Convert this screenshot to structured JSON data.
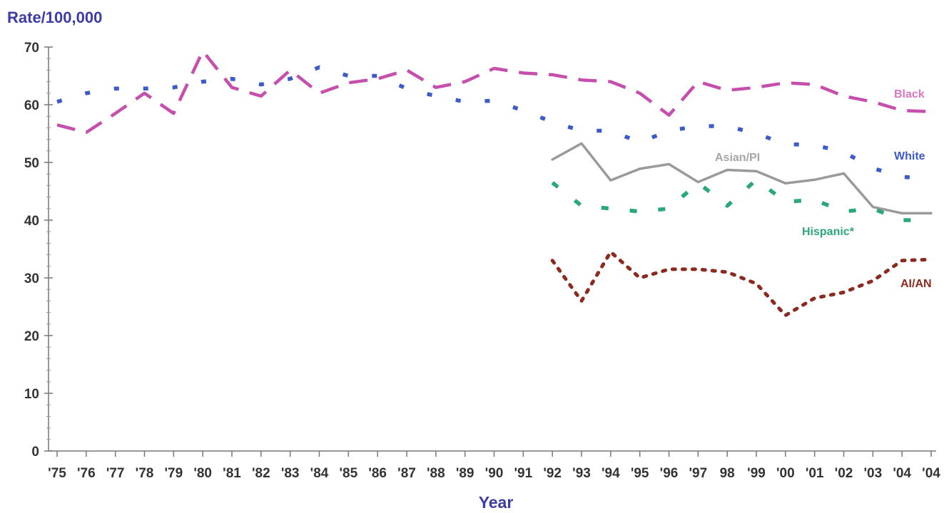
{
  "chart_data": {
    "type": "line",
    "ylabel": "Rate/100,000",
    "xlabel": "Year",
    "ylim": [
      0,
      70
    ],
    "y_ticks": [
      0,
      10,
      20,
      30,
      40,
      50,
      60,
      70
    ],
    "grid": false,
    "x": [
      "'75",
      "'76",
      "'77",
      "'78",
      "'79",
      "'80",
      "'81",
      "'82",
      "'83",
      "'84",
      "'85",
      "'86",
      "'87",
      "'88",
      "'89",
      "'90",
      "'91",
      "'92",
      "'93",
      "'94",
      "'95",
      "'96",
      "'97",
      "'98",
      "'99",
      "'00",
      "'01",
      "'02",
      "'03",
      "'04",
      "'04"
    ],
    "x_tick_labels": [
      "'75",
      "'76",
      "'77",
      "'78",
      "'79",
      "'80",
      "'81",
      "'82",
      "'83",
      "'84",
      "'85",
      "'86",
      "'87",
      "'88",
      "'89",
      "'90",
      "'91",
      "'92",
      "'93",
      "'94",
      "'95",
      "'96",
      "'97",
      "98",
      "'99",
      "'00",
      "'01",
      "'02",
      "'03",
      "'04",
      "'04"
    ],
    "series": [
      {
        "name": "Black",
        "color": "#c64fae",
        "style": "dashed",
        "values": [
          56.5,
          55.2,
          58.5,
          62.0,
          58.5,
          69.3,
          63.0,
          61.5,
          66.0,
          62.0,
          63.8,
          64.5,
          66.0,
          63.0,
          64.0,
          66.3,
          65.5,
          65.2,
          64.3,
          64.0,
          62.0,
          58.2,
          64.0,
          62.5,
          63.0,
          63.8,
          63.5,
          61.5,
          60.5,
          59.0,
          58.8
        ]
      },
      {
        "name": "White",
        "color": "#3c5ac8",
        "style": "dotted",
        "values": [
          60.5,
          62.0,
          62.8,
          62.8,
          63.0,
          64.0,
          64.5,
          63.5,
          64.5,
          66.5,
          65.0,
          65.0,
          62.8,
          61.5,
          60.5,
          60.7,
          59.0,
          57.0,
          55.5,
          55.5,
          53.5,
          55.5,
          56.3,
          56.3,
          55.0,
          53.2,
          53.0,
          51.8,
          49.0,
          47.5,
          47.2
        ]
      },
      {
        "name": "Asian/PI",
        "color": "#9a9a9a",
        "style": "solid",
        "values": [
          null,
          null,
          null,
          null,
          null,
          null,
          null,
          null,
          null,
          null,
          null,
          null,
          null,
          null,
          null,
          null,
          null,
          50.5,
          53.3,
          46.9,
          48.9,
          49.7,
          46.6,
          48.7,
          48.5,
          46.4,
          47.0,
          48.1,
          42.3,
          41.2,
          41.2
        ]
      },
      {
        "name": "Hispanic*",
        "color": "#2aa878",
        "style": "dash-dot",
        "values": [
          null,
          null,
          null,
          null,
          null,
          null,
          null,
          null,
          null,
          null,
          null,
          null,
          null,
          null,
          null,
          null,
          null,
          46.5,
          42.5,
          42.0,
          41.5,
          42.0,
          46.5,
          42.5,
          47.0,
          43.2,
          43.5,
          41.5,
          42.0,
          40.0,
          40.0
        ]
      },
      {
        "name": "AI/AN",
        "color": "#8b2a1e",
        "style": "dotted",
        "values": [
          null,
          null,
          null,
          null,
          null,
          null,
          null,
          null,
          null,
          null,
          null,
          null,
          null,
          null,
          null,
          null,
          null,
          33.0,
          26.0,
          34.5,
          30.0,
          31.5,
          31.5,
          31.0,
          29.0,
          23.5,
          26.5,
          27.5,
          29.5,
          33.0,
          33.2
        ]
      }
    ]
  }
}
